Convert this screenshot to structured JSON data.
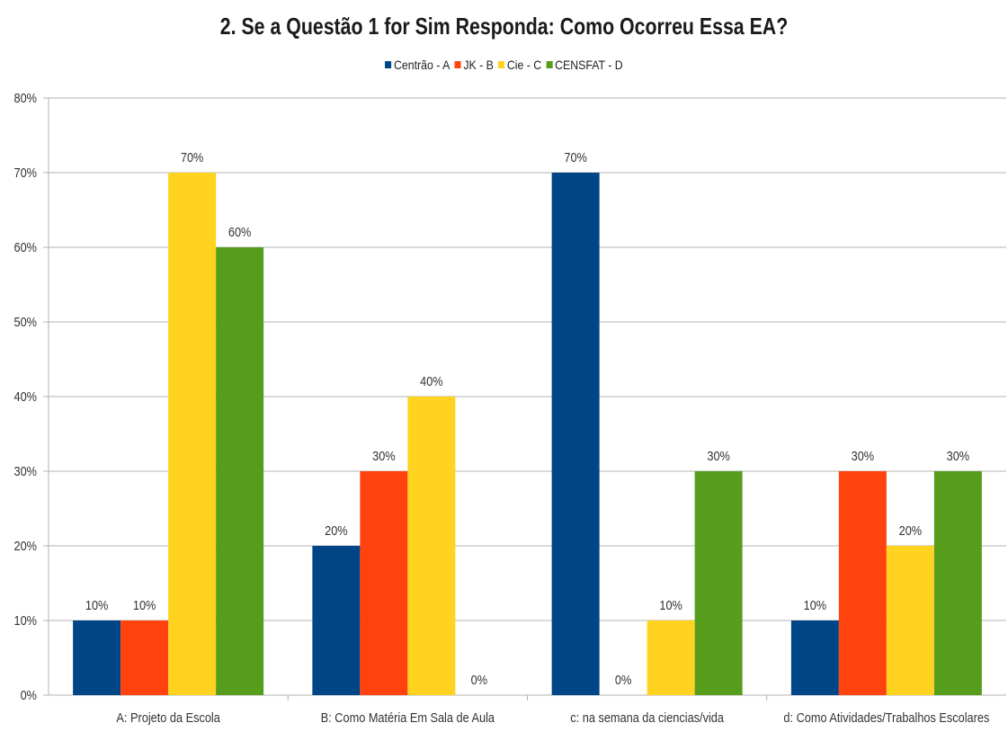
{
  "chart_data": {
    "type": "bar",
    "title": "2. Se a Questão 1 for Sim Responda: Como Ocorreu Essa EA?",
    "categories": [
      "A: Projeto da Escola",
      "B: Como Matéria Em Sala de Aula",
      "c: na semana da ciencias/vida",
      "d: Como Atividades/Trabalhos Escolares"
    ],
    "series": [
      {
        "name": "Centrão - A",
        "color": "#004586",
        "values": [
          10,
          20,
          70,
          10
        ]
      },
      {
        "name": "JK - B",
        "color": "#ff420e",
        "values": [
          10,
          30,
          0,
          30
        ]
      },
      {
        "name": "Cie - C",
        "color": "#ffd320",
        "values": [
          70,
          40,
          10,
          20
        ]
      },
      {
        "name": "CENSFAT - D",
        "color": "#579d1c",
        "values": [
          60,
          0,
          30,
          30
        ]
      }
    ],
    "ylim": [
      0,
      80
    ],
    "yticks": [
      "0%",
      "10%",
      "20%",
      "30%",
      "40%",
      "50%",
      "60%",
      "70%",
      "80%"
    ],
    "value_suffix": "%",
    "legend_position": "top-center",
    "grid": true
  }
}
